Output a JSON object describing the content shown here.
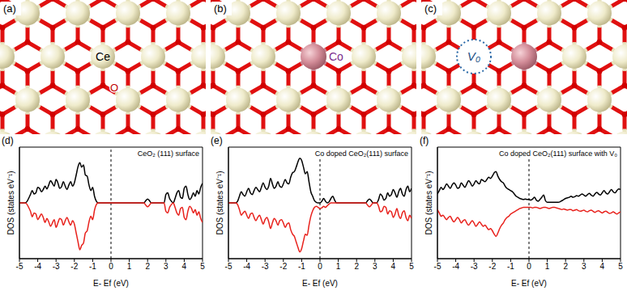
{
  "structures": [
    {
      "panel": "(a)",
      "labels": [
        "Ce",
        "O"
      ]
    },
    {
      "panel": "(b)",
      "labels": [
        "Co"
      ]
    },
    {
      "panel": "(c)",
      "labels": [
        "V₀"
      ]
    }
  ],
  "chart_data": [
    {
      "type": "line",
      "panel": "(d)",
      "title": "CeO₂ (111) surface",
      "x_label": "E- Ef (eV)",
      "y_label": "DOS (states eV⁻¹)",
      "x": [
        -5,
        -4.9,
        -4.8,
        -4.7,
        -4.6,
        -4.5,
        -4.4,
        -4.3,
        -4.2,
        -4.1,
        -4,
        -3.9,
        -3.8,
        -3.7,
        -3.6,
        -3.5,
        -3.4,
        -3.3,
        -3.2,
        -3.1,
        -3,
        -2.9,
        -2.8,
        -2.7,
        -2.6,
        -2.5,
        -2.4,
        -2.3,
        -2.2,
        -2.1,
        -2,
        -1.9,
        -1.8,
        -1.7,
        -1.6,
        -1.5,
        -1.4,
        -1.3,
        -1.2,
        -1.1,
        -1,
        -0.9,
        -0.8,
        -0.7,
        -0.6,
        -0.5,
        -0.4,
        -0.3,
        -0.2,
        -0.1,
        0,
        0.1,
        0.2,
        0.3,
        0.4,
        0.5,
        0.6,
        0.7,
        0.8,
        0.9,
        1,
        1.1,
        1.2,
        1.3,
        1.4,
        1.5,
        1.6,
        1.7,
        1.8,
        1.9,
        2,
        2.1,
        2.2,
        2.3,
        2.4,
        2.5,
        2.6,
        2.7,
        2.8,
        2.9,
        3,
        3.1,
        3.2,
        3.3,
        3.4,
        3.5,
        3.6,
        3.7,
        3.8,
        3.9,
        4,
        4.1,
        4.2,
        4.3,
        4.4,
        4.5,
        4.6,
        4.7,
        4.8,
        4.9,
        5
      ],
      "series": [
        {
          "color": "#000000",
          "values": [
            0,
            0,
            0,
            0,
            0.2,
            0.8,
            1.5,
            2.2,
            1.6,
            1.8,
            2.8,
            2.6,
            2.0,
            2.4,
            3.0,
            2.5,
            3.2,
            4.0,
            3.5,
            3.0,
            4.2,
            3.6,
            2.6,
            2.9,
            3.8,
            3.0,
            2.4,
            3.2,
            3.8,
            3.0,
            3.6,
            5.0,
            6.5,
            7.2,
            6.4,
            6.8,
            5.0,
            4.8,
            3.2,
            2.2,
            2.8,
            1.2,
            0.3,
            0,
            0,
            0,
            0,
            0,
            0,
            0,
            0,
            0,
            0,
            0,
            0,
            0,
            0,
            0,
            0,
            0,
            0,
            0,
            0,
            0,
            0,
            0,
            0,
            0,
            0,
            0.4,
            0.7,
            0.4,
            0,
            0,
            0,
            0,
            0,
            0,
            0,
            0,
            1.5,
            1.8,
            0.8,
            0.3,
            0,
            0.8,
            1.8,
            2.2,
            1.0,
            0.8,
            2.6,
            3.0,
            1.5,
            0.6,
            1.0,
            1.8,
            1.2,
            2.2,
            1.6,
            2.8,
            3.5
          ]
        },
        {
          "color": "#e8211c",
          "values": [
            0,
            0,
            0,
            0,
            -0.2,
            -0.8,
            -1.5,
            -2.5,
            -1.8,
            -2.0,
            -3.0,
            -2.5,
            -2.0,
            -2.6,
            -3.5,
            -2.8,
            -3.4,
            -4.2,
            -3.6,
            -3.0,
            -4.4,
            -3.6,
            -2.8,
            -3.0,
            -4.0,
            -3.2,
            -2.6,
            -3.4,
            -4.0,
            -3.2,
            -3.8,
            -5.4,
            -7.0,
            -8.4,
            -7.6,
            -7.2,
            -5.4,
            -5.0,
            -3.4,
            -2.4,
            -3.0,
            -1.3,
            -0.3,
            0,
            0,
            0,
            0,
            0,
            0,
            0,
            0,
            0,
            0,
            0,
            0,
            0,
            0,
            0,
            0,
            0,
            0,
            0,
            0,
            0,
            0,
            0,
            0,
            0,
            0,
            -0.4,
            -0.7,
            -0.4,
            0,
            0,
            0,
            0,
            0,
            0,
            0,
            0,
            -1.5,
            -1.8,
            -0.8,
            -0.3,
            0,
            -0.8,
            -1.8,
            -2.2,
            -1.0,
            -0.8,
            -2.6,
            -3.0,
            -1.5,
            -0.6,
            -1.0,
            -1.8,
            -1.2,
            -2.2,
            -1.6,
            -2.8,
            -3.5
          ]
        }
      ],
      "xlim": [
        -5,
        5
      ],
      "xticks": [
        -5,
        -4,
        -3,
        -2,
        -1,
        0,
        1,
        2,
        3,
        4,
        5
      ],
      "ylim": [
        -10,
        10
      ],
      "tick_labels": "x",
      "vline": 0
    },
    {
      "type": "line",
      "panel": "(e)",
      "title": "Co doped CeO₂(111) surface",
      "x_label": "E- Ef (eV)",
      "y_label": "DOS (states eV⁻¹)",
      "x": [
        -5,
        -4.9,
        -4.8,
        -4.7,
        -4.6,
        -4.5,
        -4.4,
        -4.3,
        -4.2,
        -4.1,
        -4,
        -3.9,
        -3.8,
        -3.7,
        -3.6,
        -3.5,
        -3.4,
        -3.3,
        -3.2,
        -3.1,
        -3,
        -2.9,
        -2.8,
        -2.7,
        -2.6,
        -2.5,
        -2.4,
        -2.3,
        -2.2,
        -2.1,
        -2,
        -1.9,
        -1.8,
        -1.7,
        -1.6,
        -1.5,
        -1.4,
        -1.3,
        -1.2,
        -1.1,
        -1,
        -0.9,
        -0.8,
        -0.7,
        -0.6,
        -0.5,
        -0.4,
        -0.3,
        -0.2,
        -0.1,
        0,
        0.1,
        0.2,
        0.3,
        0.4,
        0.5,
        0.6,
        0.7,
        0.8,
        0.9,
        1,
        1.1,
        1.2,
        1.3,
        1.4,
        1.5,
        1.6,
        1.7,
        1.8,
        1.9,
        2,
        2.1,
        2.2,
        2.3,
        2.4,
        2.5,
        2.6,
        2.7,
        2.8,
        2.9,
        3,
        3.1,
        3.2,
        3.3,
        3.4,
        3.5,
        3.6,
        3.7,
        3.8,
        3.9,
        4,
        4.1,
        4.2,
        4.3,
        4.4,
        4.5,
        4.6,
        4.7,
        4.8,
        4.9,
        5
      ],
      "series": [
        {
          "color": "#000000",
          "values": [
            0,
            0,
            0,
            0,
            0,
            0.3,
            1.2,
            2.0,
            1.5,
            1.2,
            2.0,
            2.6,
            1.8,
            1.5,
            2.2,
            2.8,
            2.4,
            2.0,
            2.8,
            3.6,
            2.8,
            2.4,
            3.0,
            4.4,
            3.4,
            2.6,
            3.0,
            3.8,
            3.0,
            2.8,
            3.4,
            4.2,
            3.6,
            3.4,
            4.6,
            5.4,
            5.6,
            6.4,
            7.4,
            8.0,
            7.6,
            6.4,
            5.2,
            5.6,
            3.8,
            2.0,
            1.2,
            0.4,
            0.1,
            0,
            0,
            0.3,
            0.8,
            0.3,
            0,
            0.2,
            0.8,
            1.2,
            0.5,
            0,
            0,
            0,
            0,
            0,
            0,
            0,
            0,
            0,
            0,
            0,
            0,
            0,
            0,
            0,
            0,
            0,
            0.4,
            0.7,
            0.4,
            0,
            0,
            0,
            0.6,
            1.6,
            1.2,
            0.5,
            0.8,
            1.8,
            1.2,
            1.5,
            2.4,
            1.8,
            1.0,
            2.0,
            2.6,
            1.6,
            1.2,
            2.4,
            3.0,
            2.0,
            2.6
          ]
        },
        {
          "color": "#e8211c",
          "values": [
            0,
            0,
            0,
            0,
            0,
            -0.3,
            -1.2,
            -2.2,
            -1.8,
            -1.5,
            -2.2,
            -2.8,
            -2.0,
            -1.8,
            -2.6,
            -3.2,
            -2.6,
            -2.2,
            -3.0,
            -3.8,
            -3.0,
            -2.6,
            -3.4,
            -4.6,
            -3.6,
            -2.8,
            -3.2,
            -4.0,
            -3.2,
            -3.0,
            -3.6,
            -4.4,
            -3.8,
            -3.6,
            -4.8,
            -5.6,
            -6.0,
            -7.0,
            -8.0,
            -8.8,
            -8.2,
            -6.8,
            -5.6,
            -5.8,
            -4.0,
            -2.4,
            -1.4,
            -0.8,
            -0.6,
            -0.8,
            -1.0,
            -0.9,
            -0.6,
            -0.8,
            -0.5,
            -0.2,
            0,
            0,
            0,
            0,
            0,
            0,
            0,
            0,
            0,
            0,
            0,
            0,
            0,
            0,
            0,
            0,
            0,
            0,
            0,
            0,
            -0.4,
            -0.7,
            -0.4,
            0,
            0,
            0,
            -0.6,
            -1.6,
            -1.4,
            -0.6,
            -0.8,
            -2.0,
            -1.4,
            -1.6,
            -2.6,
            -2.0,
            -1.0,
            -2.2,
            -2.8,
            -1.8,
            -1.4,
            -2.6,
            -3.2,
            -2.2,
            -2.8
          ]
        }
      ],
      "xlim": [
        -5,
        5
      ],
      "xticks": [
        -5,
        -4,
        -3,
        -2,
        -1,
        0,
        1,
        2,
        3,
        4,
        5
      ],
      "ylim": [
        -10,
        10
      ],
      "tick_labels": "x",
      "vline": 0
    },
    {
      "type": "line",
      "panel": "(f)",
      "title": "Co doped CeO₂(111) surface with V₀",
      "x_label": "E- Ef (eV)",
      "y_label": "DOS (states eV⁻¹)",
      "x": [
        -5,
        -4.9,
        -4.8,
        -4.7,
        -4.6,
        -4.5,
        -4.4,
        -4.3,
        -4.2,
        -4.1,
        -4,
        -3.9,
        -3.8,
        -3.7,
        -3.6,
        -3.5,
        -3.4,
        -3.3,
        -3.2,
        -3.1,
        -3,
        -2.9,
        -2.8,
        -2.7,
        -2.6,
        -2.5,
        -2.4,
        -2.3,
        -2.2,
        -2.1,
        -2,
        -1.9,
        -1.8,
        -1.7,
        -1.6,
        -1.5,
        -1.4,
        -1.3,
        -1.2,
        -1.1,
        -1,
        -0.9,
        -0.8,
        -0.7,
        -0.6,
        -0.5,
        -0.4,
        -0.3,
        -0.2,
        -0.1,
        0,
        0.1,
        0.2,
        0.3,
        0.4,
        0.5,
        0.6,
        0.7,
        0.8,
        0.9,
        1,
        1.1,
        1.2,
        1.3,
        1.4,
        1.5,
        1.6,
        1.7,
        1.8,
        1.9,
        2,
        2.1,
        2.2,
        2.3,
        2.4,
        2.5,
        2.6,
        2.7,
        2.8,
        2.9,
        3,
        3.1,
        3.2,
        3.3,
        3.4,
        3.5,
        3.6,
        3.7,
        3.8,
        3.9,
        4,
        4.1,
        4.2,
        4.3,
        4.4,
        4.5,
        4.6,
        4.7,
        4.8,
        4.9,
        5
      ],
      "series": [
        {
          "color": "#000000",
          "values": [
            1.6,
            2.2,
            2.8,
            2.4,
            2.8,
            3.4,
            3.0,
            2.6,
            3.2,
            3.6,
            3.2,
            2.6,
            2.8,
            3.6,
            3.2,
            2.8,
            3.4,
            4.0,
            3.6,
            3.0,
            3.4,
            4.0,
            3.6,
            3.4,
            4.2,
            4.0,
            3.8,
            4.2,
            4.6,
            4.4,
            4.8,
            5.4,
            5.6,
            4.8,
            4.2,
            3.8,
            3.6,
            3.0,
            2.6,
            2.4,
            2.2,
            2.0,
            1.6,
            1.2,
            1.0,
            0.8,
            0.7,
            0.6,
            0.7,
            0.6,
            0.6,
            0.5,
            0.7,
            1.0,
            0.5,
            0.3,
            0.6,
            1.0,
            1.4,
            0.4,
            0.1,
            0.1,
            0.1,
            0.1,
            0.1,
            0.1,
            0.1,
            0.2,
            0.4,
            0.6,
            0.8,
            0.9,
            1.0,
            1.2,
            1.0,
            1.1,
            1.3,
            1.2,
            1.4,
            1.6,
            1.4,
            1.2,
            1.5,
            1.7,
            1.4,
            1.2,
            1.6,
            1.9,
            1.6,
            1.4,
            1.8,
            2.2,
            1.8,
            1.6,
            2.0,
            2.4,
            2.0,
            1.8,
            2.2,
            2.5,
            2.4
          ]
        },
        {
          "color": "#e8211c",
          "values": [
            -1.2,
            -1.8,
            -2.4,
            -2.2,
            -2.6,
            -3.0,
            -2.6,
            -2.4,
            -3.0,
            -3.4,
            -3.0,
            -2.6,
            -3.0,
            -3.6,
            -3.2,
            -3.0,
            -3.6,
            -4.0,
            -3.6,
            -3.2,
            -3.6,
            -4.2,
            -3.8,
            -3.4,
            -3.8,
            -4.2,
            -4.0,
            -4.4,
            -4.8,
            -4.6,
            -5.0,
            -5.6,
            -6.0,
            -5.4,
            -4.6,
            -4.0,
            -3.6,
            -3.0,
            -2.6,
            -2.4,
            -2.0,
            -1.8,
            -1.6,
            -1.4,
            -1.2,
            -1.0,
            -0.9,
            -0.8,
            -0.8,
            -0.8,
            -0.8,
            -0.8,
            -0.9,
            -0.8,
            -0.8,
            -0.9,
            -1.0,
            -0.9,
            -0.8,
            -0.8,
            -0.9,
            -1.0,
            -0.9,
            -0.8,
            -0.8,
            -0.9,
            -1.0,
            -1.1,
            -1.2,
            -1.1,
            -1.2,
            -1.3,
            -1.2,
            -1.2,
            -1.4,
            -1.3,
            -1.2,
            -1.4,
            -1.5,
            -1.4,
            -1.3,
            -1.5,
            -1.6,
            -1.4,
            -1.3,
            -1.5,
            -1.7,
            -1.5,
            -1.4,
            -1.6,
            -1.8,
            -1.6,
            -1.5,
            -1.7,
            -1.9,
            -1.8,
            -1.6,
            -1.8,
            -2.0,
            -1.8,
            -1.6
          ]
        }
      ],
      "xlim": [
        -5,
        5
      ],
      "xticks": [
        -5,
        -4,
        -3,
        -2,
        -1,
        0,
        1,
        2,
        3,
        4,
        5
      ],
      "ylim": [
        -10,
        10
      ],
      "tick_labels": "x",
      "vline": 0
    }
  ]
}
